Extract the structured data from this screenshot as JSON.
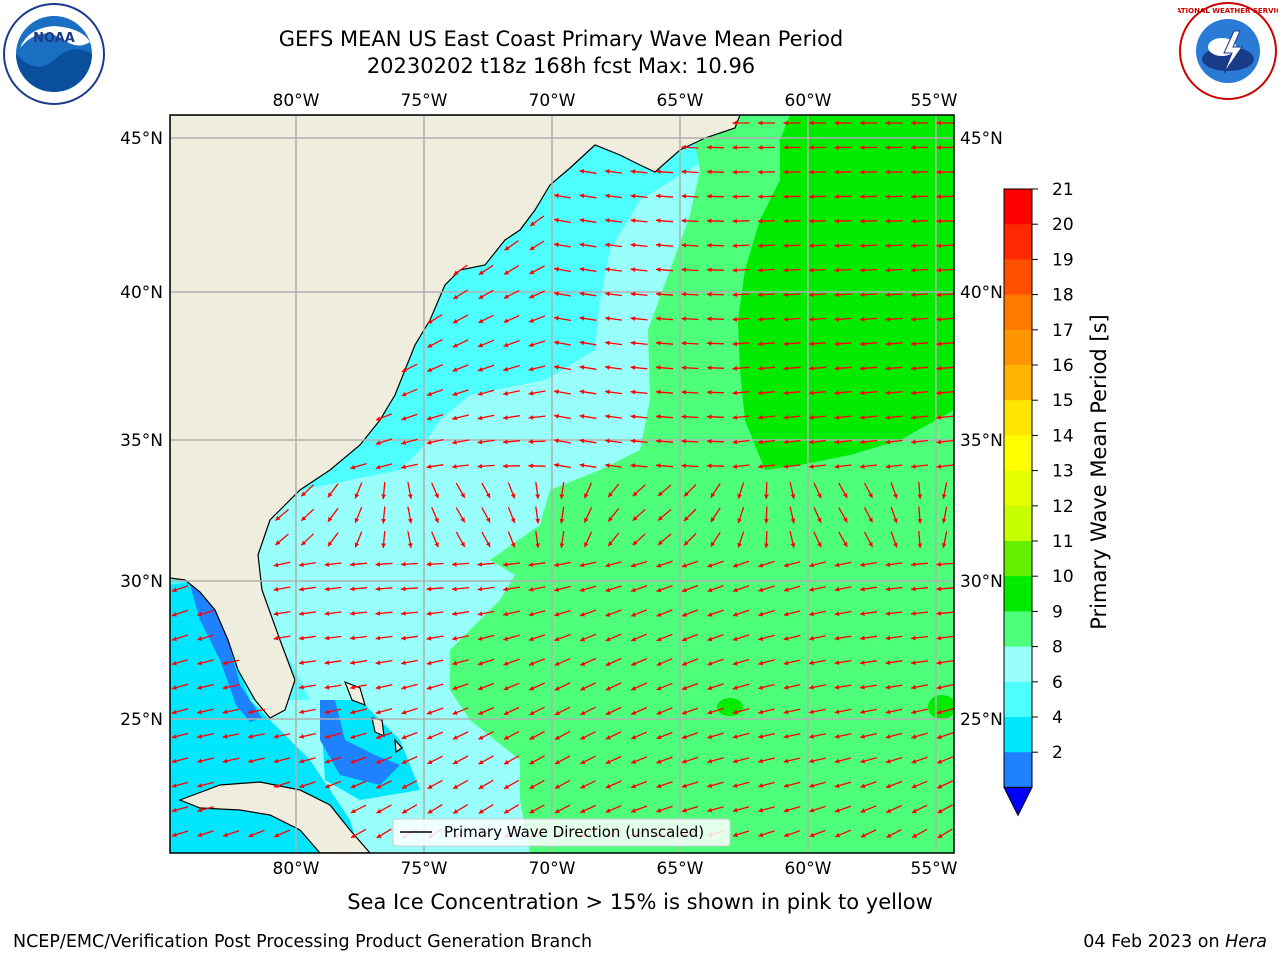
{
  "title_line1": "GEFS MEAN US East Coast Primary Wave Mean Period",
  "title_line2": "20230202 t18z 168h fcst   Max: 10.96",
  "subtitle": "Sea Ice Concentration > 15% is shown in pink to yellow",
  "footer_left": "NCEP/EMC/Verification Post Processing Product Generation Branch",
  "footer_date": "04 Feb 2023 on ",
  "footer_host": "Hera",
  "logos": {
    "left": "NOAA",
    "right": "NATIONAL WEATHER SERVICE"
  },
  "map": {
    "lon_labels": [
      "80°W",
      "75°W",
      "70°W",
      "65°W",
      "60°W",
      "55°W"
    ],
    "lat_labels": [
      "45°N",
      "40°N",
      "35°N",
      "30°N",
      "25°N"
    ],
    "legend_label": "Primary Wave Direction (unscaled)",
    "colors": {
      "land": "#efedde",
      "band_2_4": "#1e82ff",
      "band_4_6": "#00e6ff",
      "band_6_8": "#4dffff",
      "band_8_9": "#99fffb",
      "band_9_10": "#4dff7a",
      "band_10_11": "#00eb00",
      "arrow": "#ff0000"
    }
  },
  "colorbar": {
    "label": "Primary Wave Mean Period [s]",
    "ticks": [
      "21",
      "20",
      "19",
      "18",
      "17",
      "16",
      "15",
      "14",
      "13",
      "12",
      "11",
      "10",
      "9",
      "8",
      "6",
      "4",
      "2"
    ],
    "colors": [
      "#ff0000",
      "#ff2800",
      "#ff5000",
      "#ff7800",
      "#ff9600",
      "#ffb400",
      "#ffe600",
      "#ffff00",
      "#e6ff00",
      "#c8ff00",
      "#64f000",
      "#00eb00",
      "#4dff7a",
      "#99fffb",
      "#4dffff",
      "#00e6ff",
      "#1e82ff"
    ],
    "extend_color": "#0000ff"
  }
}
